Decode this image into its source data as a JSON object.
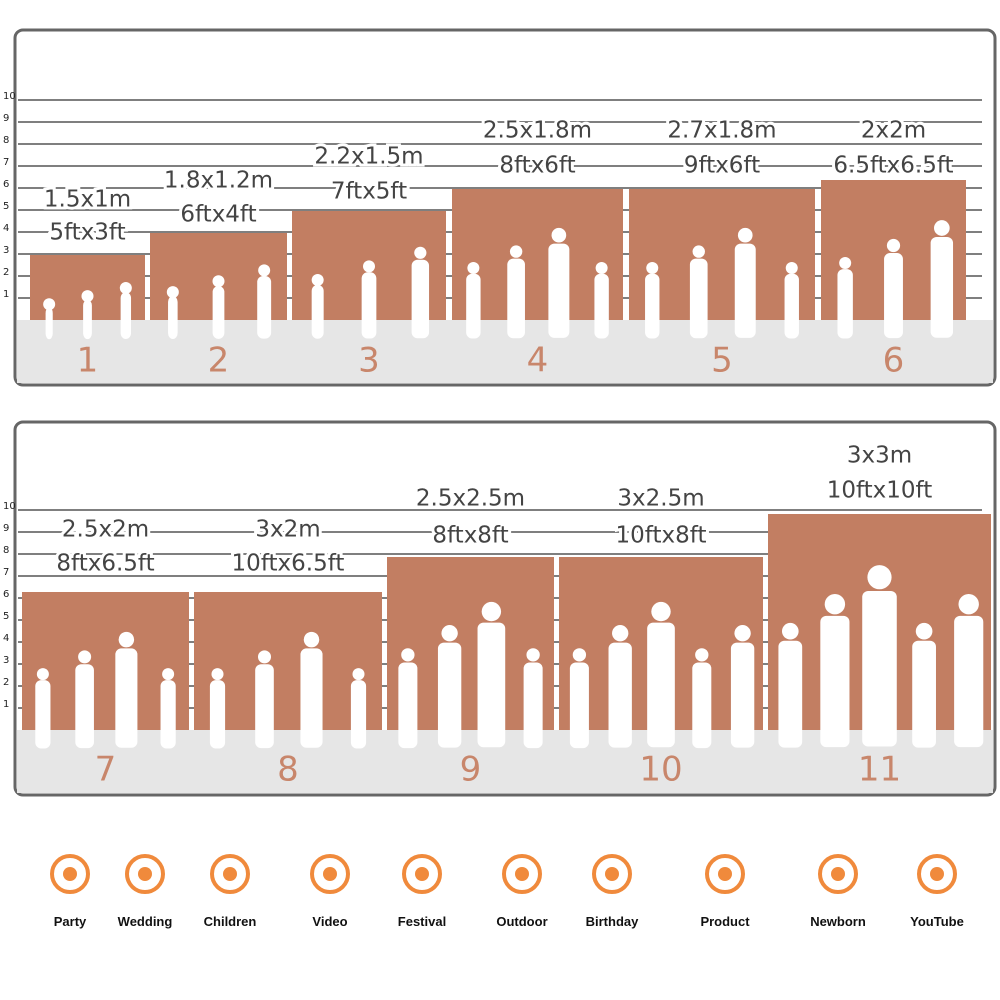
{
  "scale_ticks": [
    "1",
    "2",
    "3",
    "4",
    "5",
    "6",
    "7",
    "8",
    "9",
    "10"
  ],
  "panels": [
    {
      "items": [
        {
          "number": "1",
          "metric": "1.5x1m",
          "imperial": "5ftx3ft"
        },
        {
          "number": "2",
          "metric": "1.8x1.2m",
          "imperial": "6ftx4ft"
        },
        {
          "number": "3",
          "metric": "2.2x1.5m",
          "imperial": "7ftx5ft"
        },
        {
          "number": "4",
          "metric": "2.5x1.8m",
          "imperial": "8ftx6ft"
        },
        {
          "number": "5",
          "metric": "2.7x1.8m",
          "imperial": "9ftx6ft"
        },
        {
          "number": "6",
          "metric": "2x2m",
          "imperial": "6.5ftx6.5ft"
        }
      ]
    },
    {
      "items": [
        {
          "number": "7",
          "metric": "2.5x2m",
          "imperial": "8ftx6.5ft"
        },
        {
          "number": "8",
          "metric": "3x2m",
          "imperial": "10ftx6.5ft"
        },
        {
          "number": "9",
          "metric": "2.5x2.5m",
          "imperial": "8ftx8ft"
        },
        {
          "number": "10",
          "metric": "3x2.5m",
          "imperial": "10ftx8ft"
        },
        {
          "number": "11",
          "metric": "3x3m",
          "imperial": "10ftx10ft"
        }
      ]
    }
  ],
  "uses": [
    "Party",
    "Wedding",
    "Children",
    "Video",
    "Festival",
    "Outdoor",
    "Birthday",
    "Product",
    "Newborn",
    "YouTube"
  ]
}
